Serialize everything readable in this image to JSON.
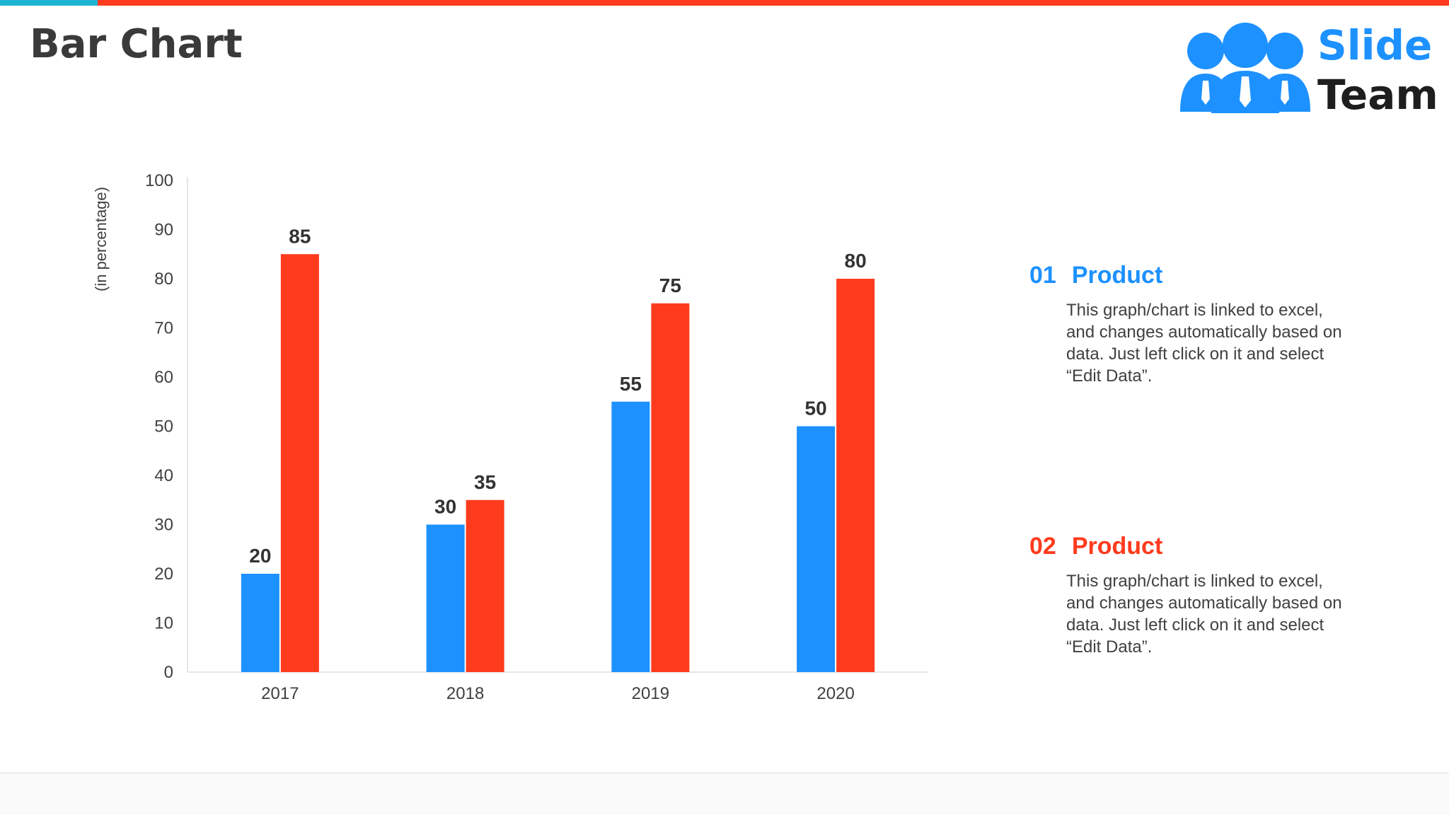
{
  "header": {
    "title": "Bar Chart"
  },
  "colors": {
    "accent_a": "#1d91ff",
    "accent_b": "#ff3b1e",
    "cyan": "#1fb3d4",
    "text": "#3a3a3a"
  },
  "logo": {
    "word_top": "Slide",
    "word_bottom": "Team",
    "icon": "people-group-icon"
  },
  "chart_data": {
    "type": "bar",
    "categories": [
      "2017",
      "2018",
      "2019",
      "2020"
    ],
    "series": [
      {
        "name": "Product 01",
        "color": "#1d91ff",
        "values": [
          20,
          30,
          55,
          50
        ]
      },
      {
        "name": "Product 02",
        "color": "#ff3b1e",
        "values": [
          85,
          35,
          75,
          80
        ]
      }
    ],
    "y_ticks": [
      "0",
      "10",
      "20",
      "30",
      "40",
      "50",
      "60",
      "70",
      "80",
      "90",
      "100"
    ],
    "ylim": [
      0,
      100
    ],
    "ylabel": "(in percentage)",
    "xlabel": "",
    "title": "",
    "grid": false,
    "data_labels": true
  },
  "legend": [
    {
      "number": "01",
      "label": "Product",
      "color": "#1d91ff",
      "text": "This graph/chart is linked to excel, and changes automatically based on data. Just left click on it and select “Edit Data”."
    },
    {
      "number": "02",
      "label": "Product",
      "color": "#ff3b1e",
      "text": "This graph/chart is linked to excel, and changes automatically based on data. Just left click on it and select “Edit Data”."
    }
  ]
}
